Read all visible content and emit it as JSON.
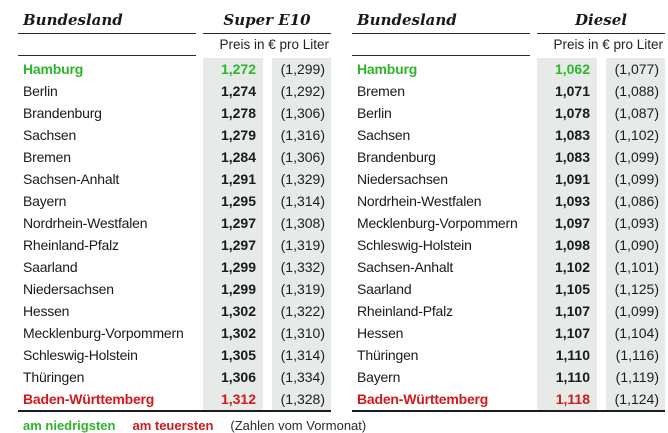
{
  "legend": {
    "lowest_label": "am niedrigsten",
    "highest_label": "am teuersten",
    "note": "(Zahlen vom Vormonat)"
  },
  "colors": {
    "lowest_green": "#2eb52c",
    "highest_red": "#d01a1c",
    "column_bg": "#e7ebe8"
  },
  "tables": [
    {
      "state_header": "Bundesland",
      "fuel_header": "Super E10",
      "price_unit_header": "Preis in € pro Liter",
      "rows": [
        {
          "state": "Hamburg",
          "price": "1,272",
          "prev": "(1,299)",
          "highlight": "lowest"
        },
        {
          "state": "Berlin",
          "price": "1,274",
          "prev": "(1,292)"
        },
        {
          "state": "Brandenburg",
          "price": "1,278",
          "prev": "(1,306)"
        },
        {
          "state": "Sachsen",
          "price": "1,279",
          "prev": "(1,316)"
        },
        {
          "state": "Bremen",
          "price": "1,284",
          "prev": "(1,306)"
        },
        {
          "state": "Sachsen-Anhalt",
          "price": "1,291",
          "prev": "(1,329)"
        },
        {
          "state": "Bayern",
          "price": "1,295",
          "prev": "(1,314)"
        },
        {
          "state": "Nordrhein-Westfalen",
          "price": "1,297",
          "prev": "(1,308)"
        },
        {
          "state": "Rheinland-Pfalz",
          "price": "1,297",
          "prev": "(1,319)"
        },
        {
          "state": "Saarland",
          "price": "1,299",
          "prev": "(1,332)"
        },
        {
          "state": "Niedersachsen",
          "price": "1,299",
          "prev": "(1,319)"
        },
        {
          "state": "Hessen",
          "price": "1,302",
          "prev": "(1,322)"
        },
        {
          "state": "Mecklenburg-Vorpommern",
          "price": "1,302",
          "prev": "(1,310)"
        },
        {
          "state": "Schleswig-Holstein",
          "price": "1,305",
          "prev": "(1,314)"
        },
        {
          "state": "Thüringen",
          "price": "1,306",
          "prev": "(1,334)"
        },
        {
          "state": "Baden-Württemberg",
          "price": "1,312",
          "prev": "(1,328)",
          "highlight": "highest"
        }
      ]
    },
    {
      "state_header": "Bundesland",
      "fuel_header": "Diesel",
      "price_unit_header": "Preis in € pro Liter",
      "rows": [
        {
          "state": "Hamburg",
          "price": "1,062",
          "prev": "(1,077)",
          "highlight": "lowest"
        },
        {
          "state": "Bremen",
          "price": "1,071",
          "prev": "(1,088)"
        },
        {
          "state": "Berlin",
          "price": "1,078",
          "prev": "(1,087)"
        },
        {
          "state": "Sachsen",
          "price": "1,083",
          "prev": "(1,102)"
        },
        {
          "state": "Brandenburg",
          "price": "1,083",
          "prev": "(1,099)"
        },
        {
          "state": "Niedersachsen",
          "price": "1,091",
          "prev": "(1,099)"
        },
        {
          "state": "Nordrhein-Westfalen",
          "price": "1,093",
          "prev": "(1,086)"
        },
        {
          "state": "Mecklenburg-Vorpommern",
          "price": "1,097",
          "prev": "(1,093)"
        },
        {
          "state": "Schleswig-Holstein",
          "price": "1,098",
          "prev": "(1,090)"
        },
        {
          "state": "Sachsen-Anhalt",
          "price": "1,102",
          "prev": "(1,101)"
        },
        {
          "state": "Saarland",
          "price": "1,105",
          "prev": "(1,125)"
        },
        {
          "state": "Rheinland-Pfalz",
          "price": "1,107",
          "prev": "(1,099)"
        },
        {
          "state": "Hessen",
          "price": "1,107",
          "prev": "(1,104)"
        },
        {
          "state": "Thüringen",
          "price": "1,110",
          "prev": "(1,116)"
        },
        {
          "state": "Bayern",
          "price": "1,110",
          "prev": "(1,119)"
        },
        {
          "state": "Baden-Württemberg",
          "price": "1,118",
          "prev": "(1,124)",
          "highlight": "highest"
        }
      ]
    }
  ],
  "chart_data": [
    {
      "type": "table",
      "title": "Super E10",
      "columns": [
        "Bundesland",
        "Preis in € pro Liter",
        "Vormonat"
      ],
      "rows": [
        [
          "Hamburg",
          1.272,
          1.299
        ],
        [
          "Berlin",
          1.274,
          1.292
        ],
        [
          "Brandenburg",
          1.278,
          1.306
        ],
        [
          "Sachsen",
          1.279,
          1.316
        ],
        [
          "Bremen",
          1.284,
          1.306
        ],
        [
          "Sachsen-Anhalt",
          1.291,
          1.329
        ],
        [
          "Bayern",
          1.295,
          1.314
        ],
        [
          "Nordrhein-Westfalen",
          1.297,
          1.308
        ],
        [
          "Rheinland-Pfalz",
          1.297,
          1.319
        ],
        [
          "Saarland",
          1.299,
          1.332
        ],
        [
          "Niedersachsen",
          1.299,
          1.319
        ],
        [
          "Hessen",
          1.302,
          1.322
        ],
        [
          "Mecklenburg-Vorpommern",
          1.302,
          1.31
        ],
        [
          "Schleswig-Holstein",
          1.305,
          1.314
        ],
        [
          "Thüringen",
          1.306,
          1.334
        ],
        [
          "Baden-Württemberg",
          1.312,
          1.328
        ]
      ],
      "annotations": [
        "am niedrigsten: Hamburg (grün)",
        "am teuersten: Baden-Württemberg (rot)",
        "(Zahlen vom Vormonat)"
      ]
    },
    {
      "type": "table",
      "title": "Diesel",
      "columns": [
        "Bundesland",
        "Preis in € pro Liter",
        "Vormonat"
      ],
      "rows": [
        [
          "Hamburg",
          1.062,
          1.077
        ],
        [
          "Bremen",
          1.071,
          1.088
        ],
        [
          "Berlin",
          1.078,
          1.087
        ],
        [
          "Sachsen",
          1.083,
          1.102
        ],
        [
          "Brandenburg",
          1.083,
          1.099
        ],
        [
          "Niedersachsen",
          1.091,
          1.099
        ],
        [
          "Nordrhein-Westfalen",
          1.093,
          1.086
        ],
        [
          "Mecklenburg-Vorpommern",
          1.097,
          1.093
        ],
        [
          "Schleswig-Holstein",
          1.098,
          1.09
        ],
        [
          "Sachsen-Anhalt",
          1.102,
          1.101
        ],
        [
          "Saarland",
          1.105,
          1.125
        ],
        [
          "Rheinland-Pfalz",
          1.107,
          1.099
        ],
        [
          "Hessen",
          1.107,
          1.104
        ],
        [
          "Thüringen",
          1.11,
          1.116
        ],
        [
          "Bayern",
          1.11,
          1.119
        ],
        [
          "Baden-Württemberg",
          1.118,
          1.124
        ]
      ],
      "annotations": [
        "am niedrigsten: Hamburg (grün)",
        "am teuersten: Baden-Württemberg (rot)",
        "(Zahlen vom Vormonat)"
      ]
    }
  ]
}
